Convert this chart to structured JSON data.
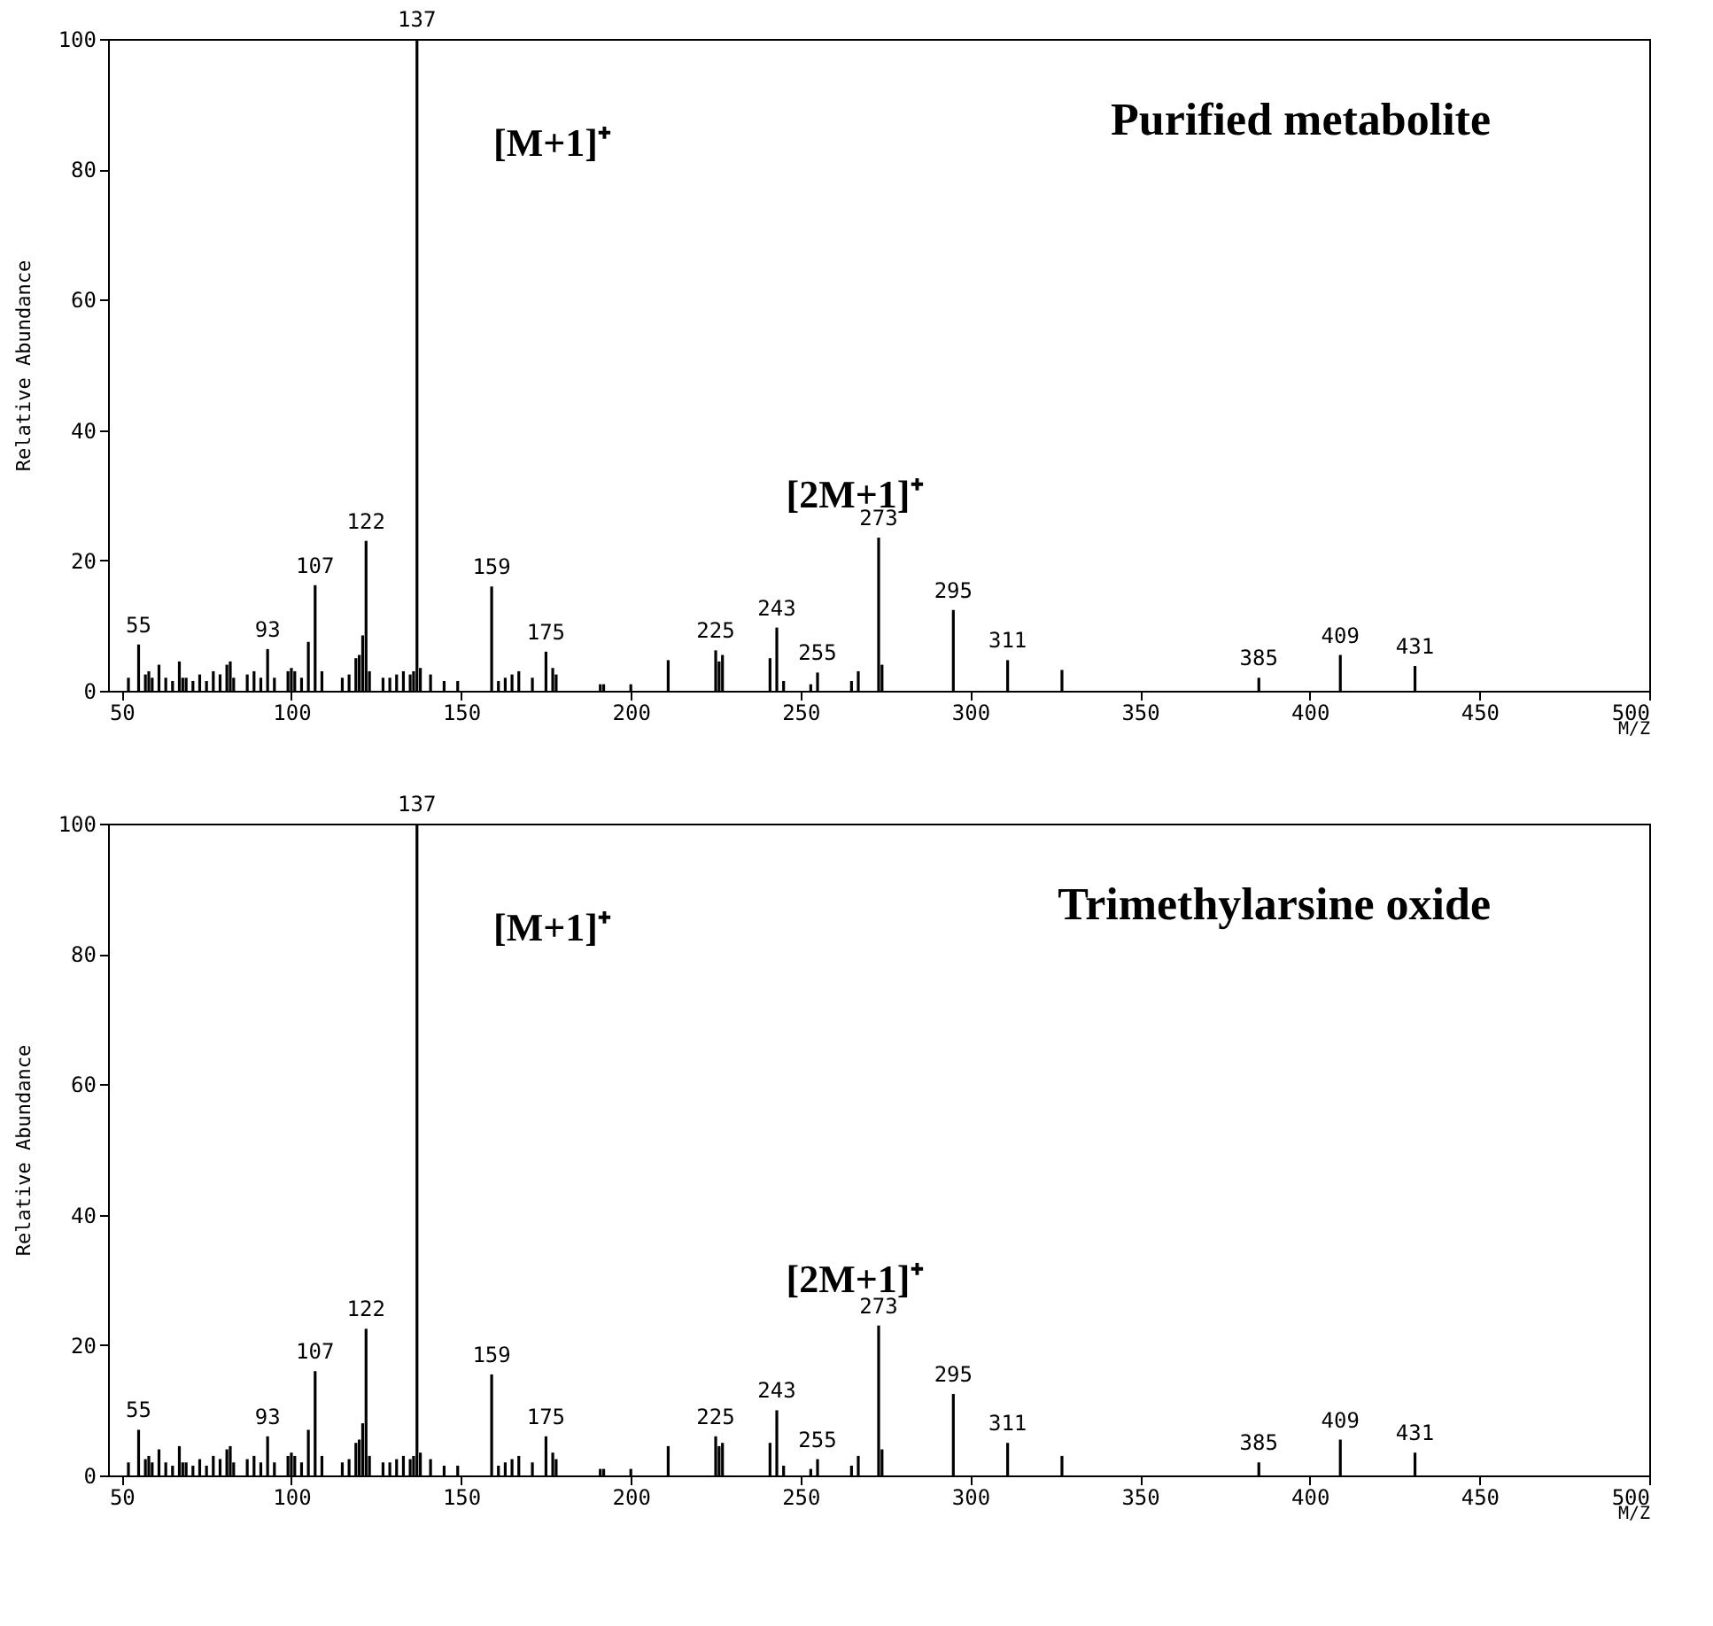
{
  "chart_data": [
    {
      "type": "bar",
      "title": "Purified  metabolite",
      "xlabel": "M/Z",
      "ylabel": "Relative Abundance",
      "color": "#000000",
      "x": [
        52,
        55,
        57,
        58,
        59,
        61,
        63,
        65,
        67,
        68,
        69,
        71,
        73,
        75,
        77,
        79,
        81,
        82,
        83,
        87,
        89,
        91,
        93,
        95,
        99,
        100,
        101,
        103,
        105,
        107,
        109,
        115,
        117,
        119,
        120,
        121,
        122,
        123,
        127,
        129,
        131,
        133,
        135,
        136,
        137,
        138,
        141,
        145,
        149,
        159,
        161,
        163,
        165,
        167,
        171,
        175,
        177,
        178,
        191,
        192,
        200,
        211,
        225,
        226,
        227,
        241,
        243,
        245,
        253,
        255,
        265,
        267,
        273,
        274,
        295,
        311,
        327,
        385,
        409,
        431
      ],
      "values": [
        2,
        7.1,
        2.5,
        3,
        2,
        4,
        2,
        1.5,
        4.5,
        2,
        2,
        1.5,
        2.5,
        1.5,
        3,
        2.5,
        4,
        4.5,
        2,
        2.5,
        3,
        2,
        6.4,
        2,
        3,
        3.5,
        3,
        2,
        7.5,
        16.2,
        3,
        2,
        2.5,
        5,
        5.5,
        8.5,
        23,
        3,
        2,
        2,
        2.5,
        3,
        2.5,
        3,
        100,
        3.5,
        2.5,
        1.5,
        1.5,
        16,
        1.5,
        2,
        2.5,
        3,
        2,
        6,
        3.5,
        2.5,
        1,
        1,
        1,
        4.7,
        6.2,
        4.5,
        5.5,
        5,
        9.7,
        1.5,
        1,
        2.8,
        1.5,
        3,
        23.5,
        4,
        12.4,
        4.7,
        3.2,
        2,
        5.5,
        3.8
      ],
      "annotations": [
        "[M+1]⁺",
        "[2M+1]⁺",
        {
          "text": "55",
          "x": 55,
          "y": 7.1
        },
        {
          "text": "93",
          "x": 93,
          "y": 6.4
        },
        {
          "text": "107",
          "x": 107,
          "y": 16.2
        },
        {
          "text": "122",
          "x": 122,
          "y": 23
        },
        {
          "text": "137",
          "x": 137,
          "y": 100
        },
        {
          "text": "159",
          "x": 159,
          "y": 16
        },
        {
          "text": "175",
          "x": 175,
          "y": 6
        },
        {
          "text": "225",
          "x": 225,
          "y": 6.2
        },
        {
          "text": "243",
          "x": 243,
          "y": 9.7
        },
        {
          "text": "255",
          "x": 255,
          "y": 2.8
        },
        {
          "text": "273",
          "x": 273,
          "y": 23.5
        },
        {
          "text": "295",
          "x": 295,
          "y": 12.4
        },
        {
          "text": "311",
          "x": 311,
          "y": 4.7
        },
        {
          "text": "385",
          "x": 385,
          "y": 2
        },
        {
          "text": "409",
          "x": 409,
          "y": 5.5
        },
        {
          "text": "431",
          "x": 431,
          "y": 3.8
        }
      ],
      "xlim": [
        46,
        500
      ],
      "ylim": [
        0,
        100
      ],
      "xticks": [
        50,
        100,
        150,
        200,
        250,
        300,
        350,
        400,
        450,
        500
      ],
      "yticks": [
        0,
        20,
        40,
        60,
        80,
        100
      ]
    },
    {
      "type": "bar",
      "title": "Trimethylarsine  oxide",
      "xlabel": "M/Z",
      "ylabel": "Relative Abundance",
      "color": "#000000",
      "x": [
        52,
        55,
        57,
        58,
        59,
        61,
        63,
        65,
        67,
        68,
        69,
        71,
        73,
        75,
        77,
        79,
        81,
        82,
        83,
        87,
        89,
        91,
        93,
        95,
        99,
        100,
        101,
        103,
        105,
        107,
        109,
        115,
        117,
        119,
        120,
        121,
        122,
        123,
        127,
        129,
        131,
        133,
        135,
        136,
        137,
        138,
        141,
        145,
        149,
        159,
        161,
        163,
        165,
        167,
        171,
        175,
        177,
        178,
        191,
        192,
        200,
        211,
        225,
        226,
        227,
        241,
        243,
        245,
        253,
        255,
        265,
        267,
        273,
        274,
        295,
        311,
        327,
        385,
        409,
        431
      ],
      "values": [
        2,
        7,
        2.5,
        3,
        2,
        4,
        2,
        1.5,
        4.5,
        2,
        2,
        1.5,
        2.5,
        1.5,
        3,
        2.5,
        4,
        4.5,
        2,
        2.5,
        3,
        2,
        6,
        2,
        3,
        3.5,
        3,
        2,
        7,
        16,
        3,
        2,
        2.5,
        5,
        5.5,
        8,
        22.5,
        3,
        2,
        2,
        2.5,
        3,
        2.5,
        3,
        100,
        3.5,
        2.5,
        1.5,
        1.5,
        15.5,
        1.5,
        2,
        2.5,
        3,
        2,
        6,
        3.5,
        2.5,
        1,
        1,
        1,
        4.5,
        6,
        4.5,
        5,
        5,
        10,
        1.5,
        1,
        2.5,
        1.5,
        3,
        23,
        4,
        12.5,
        5,
        3,
        2,
        5.5,
        3.5
      ],
      "annotations": [
        "[M+1]⁺",
        "[2M+1]⁺",
        {
          "text": "55",
          "x": 55,
          "y": 7
        },
        {
          "text": "93",
          "x": 93,
          "y": 6
        },
        {
          "text": "107",
          "x": 107,
          "y": 16
        },
        {
          "text": "122",
          "x": 122,
          "y": 22.5
        },
        {
          "text": "137",
          "x": 137,
          "y": 100
        },
        {
          "text": "159",
          "x": 159,
          "y": 15.5
        },
        {
          "text": "175",
          "x": 175,
          "y": 6
        },
        {
          "text": "225",
          "x": 225,
          "y": 6
        },
        {
          "text": "243",
          "x": 243,
          "y": 10
        },
        {
          "text": "255",
          "x": 255,
          "y": 2.5
        },
        {
          "text": "273",
          "x": 273,
          "y": 23
        },
        {
          "text": "295",
          "x": 295,
          "y": 12.5
        },
        {
          "text": "311",
          "x": 311,
          "y": 5
        },
        {
          "text": "385",
          "x": 385,
          "y": 2
        },
        {
          "text": "409",
          "x": 409,
          "y": 5.5
        },
        {
          "text": "431",
          "x": 431,
          "y": 3.5
        }
      ],
      "xlim": [
        46,
        500
      ],
      "ylim": [
        0,
        100
      ],
      "xticks": [
        50,
        100,
        150,
        200,
        250,
        300,
        350,
        400,
        450,
        500
      ],
      "yticks": [
        0,
        20,
        40,
        60,
        80,
        100
      ]
    }
  ]
}
